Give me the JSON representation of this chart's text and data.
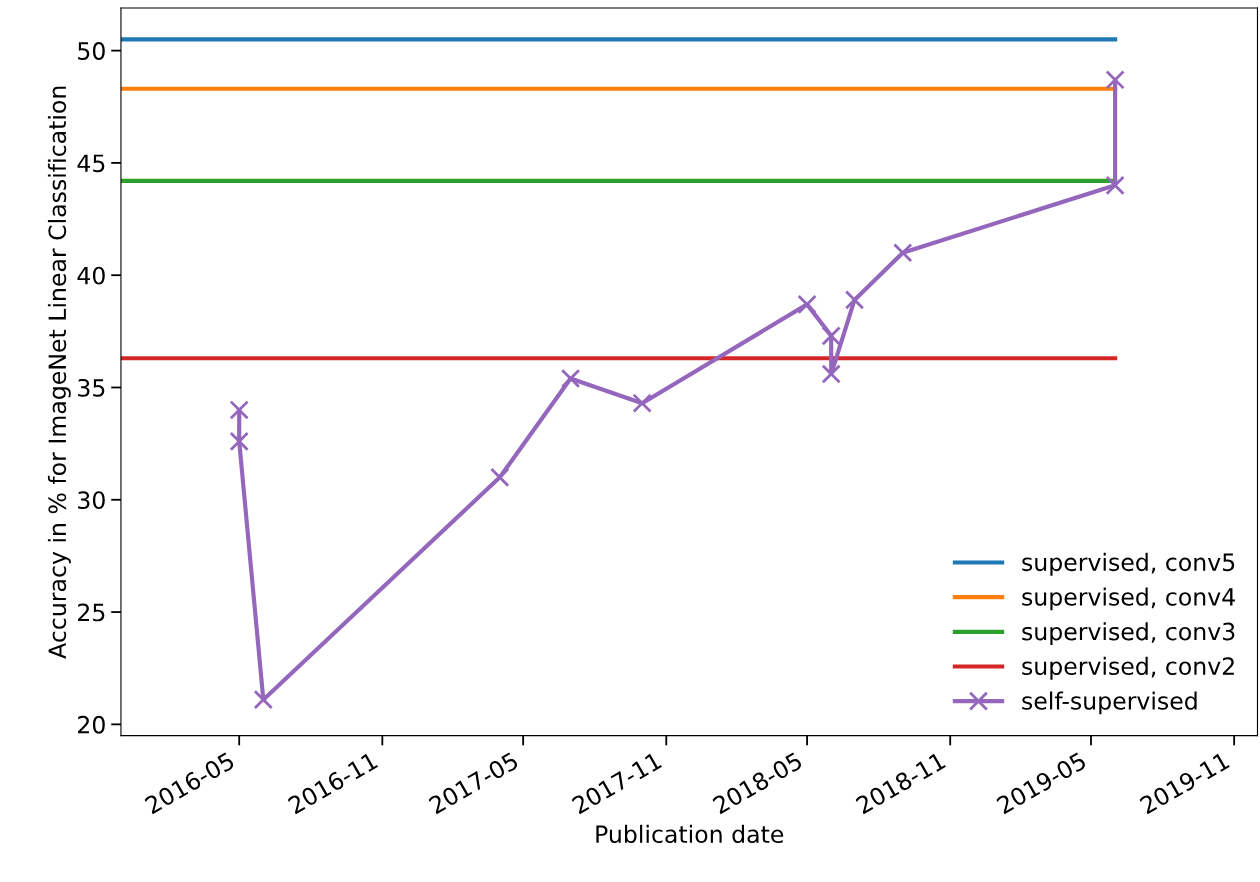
{
  "chart_data": {
    "type": "line",
    "xlabel": "Publication date",
    "ylabel": "Accuracy in % for ImageNet Linear Classification",
    "xlim": [
      "2015-12-01",
      "2019-12-01"
    ],
    "ylim": [
      19.5,
      51.9
    ],
    "xticks": [
      "2016-05",
      "2016-11",
      "2017-05",
      "2017-11",
      "2018-05",
      "2018-11",
      "2019-05",
      "2019-11"
    ],
    "yticks": [
      20,
      25,
      30,
      35,
      40,
      45,
      50
    ],
    "grid": false,
    "legend": "bottom right",
    "series": [
      {
        "name": "supervised, conv5",
        "color": "#1f77b4",
        "marker": "none",
        "x": [
          "2015-12-01",
          "2019-06-01"
        ],
        "values": [
          50.5,
          50.5
        ]
      },
      {
        "name": "supervised, conv4",
        "color": "#ff7f0e",
        "marker": "none",
        "x": [
          "2015-12-01",
          "2019-06-01"
        ],
        "values": [
          48.3,
          48.3
        ]
      },
      {
        "name": "supervised, conv3",
        "color": "#2ca02c",
        "marker": "none",
        "x": [
          "2015-12-01",
          "2019-06-01"
        ],
        "values": [
          44.2,
          44.2
        ]
      },
      {
        "name": "supervised, conv2",
        "color": "#d62728",
        "marker": "none",
        "x": [
          "2015-12-01",
          "2019-06-01"
        ],
        "values": [
          36.3,
          36.3
        ]
      },
      {
        "name": "self-supervised",
        "color": "#9467bd",
        "marker": "cross",
        "x": [
          "2016-05-01",
          "2016-05-01",
          "2016-06-01",
          "2017-04-01",
          "2017-07-01",
          "2017-10-01",
          "2018-05-01",
          "2018-06-01",
          "2018-06-01",
          "2018-07-01",
          "2018-09-01",
          "2019-06-01",
          "2019-06-01"
        ],
        "values": [
          34.0,
          32.6,
          21.1,
          31.0,
          35.4,
          34.3,
          38.7,
          37.3,
          35.6,
          38.9,
          41.0,
          44.0,
          48.7
        ]
      }
    ]
  }
}
